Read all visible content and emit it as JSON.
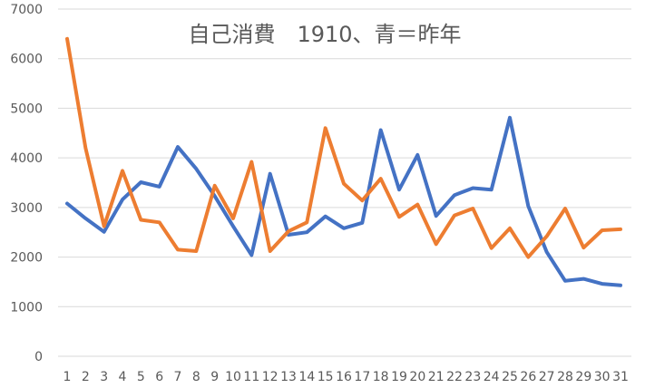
{
  "chart_data": {
    "type": "line",
    "title": "自己消費　1910、青＝昨年",
    "xlabel": "",
    "ylabel": "",
    "categories": [
      "1",
      "2",
      "3",
      "4",
      "5",
      "6",
      "7",
      "8",
      "9",
      "10",
      "11",
      "12",
      "13",
      "14",
      "15",
      "16",
      "17",
      "18",
      "19",
      "20",
      "21",
      "22",
      "23",
      "24",
      "25",
      "26",
      "27",
      "28",
      "29",
      "30",
      "31"
    ],
    "ylim": [
      0,
      7000
    ],
    "yticks": [
      0,
      1000,
      2000,
      3000,
      4000,
      5000,
      6000,
      7000
    ],
    "grid": true,
    "legend": "none",
    "series": [
      {
        "color": "#4472C4",
        "values": [
          3080,
          2780,
          2510,
          3160,
          3510,
          3420,
          4220,
          3780,
          3230,
          2620,
          2040,
          3680,
          2450,
          2500,
          2820,
          2580,
          2690,
          4560,
          3360,
          4060,
          2830,
          3250,
          3390,
          3360,
          4810,
          3030,
          2100,
          1520,
          1560,
          1460,
          1430
        ]
      },
      {
        "color": "#ED7D31",
        "values": [
          6400,
          4200,
          2620,
          3740,
          2750,
          2700,
          2150,
          2120,
          3440,
          2780,
          3920,
          2120,
          2520,
          2700,
          4600,
          3480,
          3140,
          3580,
          2810,
          3060,
          2260,
          2840,
          2980,
          2180,
          2580,
          2000,
          2420,
          2980,
          2190,
          2540,
          2560
        ]
      }
    ]
  }
}
